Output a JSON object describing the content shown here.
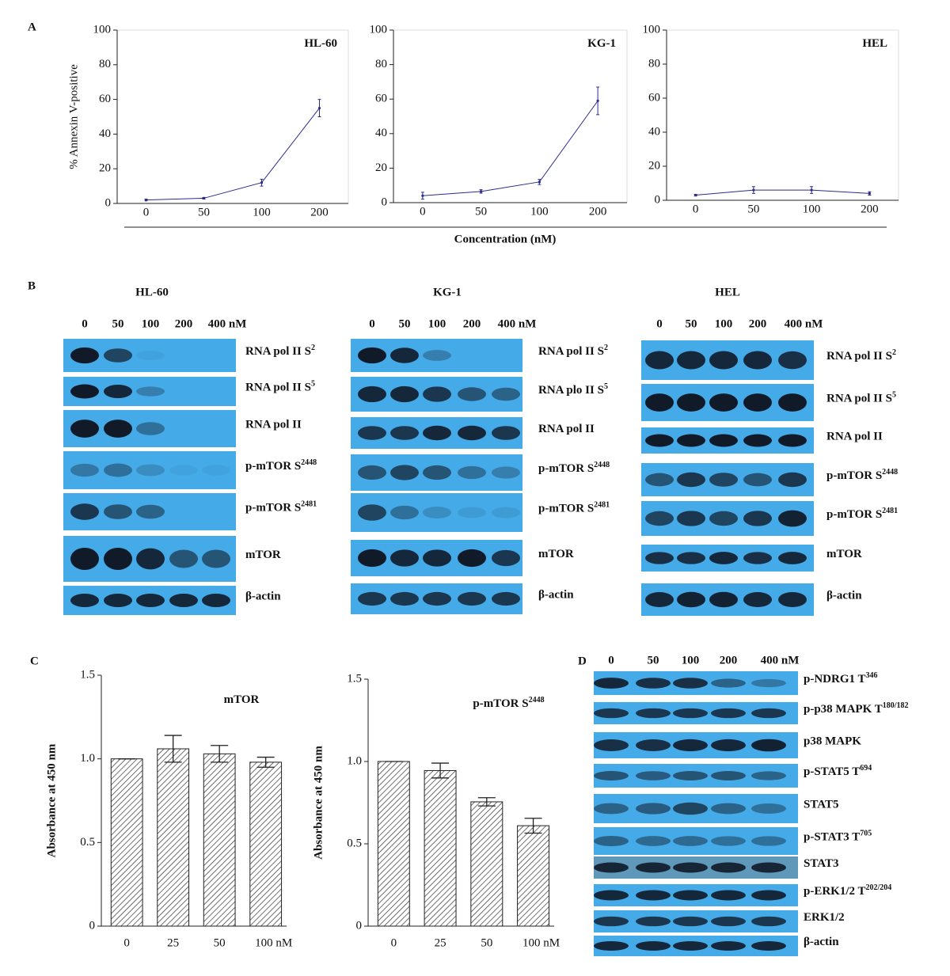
{
  "panel_labels": [
    "A",
    "B",
    "C",
    "D"
  ],
  "chart_data": [
    {
      "type": "line",
      "title": "HL-60",
      "ylabel": "% Annexin V-positive",
      "categories": [
        "0",
        "50",
        "100",
        "200"
      ],
      "values": [
        2,
        3,
        12,
        55
      ],
      "errors": [
        0.5,
        0.5,
        2,
        5
      ],
      "color": "#2b2b8c",
      "ylim": [
        0,
        100
      ],
      "yticks": [
        0,
        20,
        40,
        60,
        80,
        100
      ]
    },
    {
      "type": "line",
      "title": "KG-1",
      "xlabel": "Concentration (nM)",
      "categories": [
        "0",
        "50",
        "100",
        "200"
      ],
      "values": [
        4,
        6.5,
        12,
        59
      ],
      "errors": [
        2,
        1,
        1.5,
        8
      ],
      "color": "#2b2b8c",
      "ylim": [
        0,
        100
      ],
      "yticks": [
        0,
        20,
        40,
        60,
        80,
        100
      ]
    },
    {
      "type": "line",
      "title": "HEL",
      "categories": [
        "0",
        "50",
        "100",
        "200"
      ],
      "values": [
        3,
        6,
        6,
        4
      ],
      "errors": [
        0.5,
        2,
        2,
        1
      ],
      "color": "#2b2b8c",
      "ylim": [
        0,
        100
      ],
      "yticks": [
        0,
        20,
        40,
        60,
        80,
        100
      ]
    },
    {
      "type": "bar",
      "title": "mTOR",
      "ylabel": "Absorbance at 450 nm",
      "categories": [
        "0",
        "25",
        "50",
        "100 nM"
      ],
      "values": [
        1.0,
        1.06,
        1.03,
        0.98
      ],
      "errors": [
        0,
        0.08,
        0.05,
        0.03
      ],
      "ylim": [
        0,
        1.5
      ],
      "yticks": [
        0,
        0.5,
        {
          "value": 1,
          "label": "1.0"
        },
        1.5
      ]
    },
    {
      "type": "bar",
      "title": "p-mTOR S",
      "title_sup": "2448",
      "ylabel": "Absorbance at 450 nm",
      "categories": [
        "0",
        "25",
        "50",
        "100 nM"
      ],
      "values": [
        1.0,
        0.945,
        0.755,
        0.61
      ],
      "errors": [
        0,
        0.045,
        0.025,
        0.045
      ],
      "ylim": [
        0,
        1.5
      ],
      "yticks": [
        0,
        0.5,
        {
          "value": 1,
          "label": "1.0"
        },
        1.5
      ]
    }
  ],
  "blots": [
    {
      "title": "HL-60",
      "lanes": [
        "0",
        "50",
        "100",
        "200",
        "400 nM"
      ],
      "rows": [
        {
          "label": "RNA pol II S",
          "sup": "2"
        },
        {
          "label": "RNA pol II S",
          "sup": "5"
        },
        {
          "label": "RNA pol II"
        },
        {
          "label": "p-mTOR S",
          "sup": "2448"
        },
        {
          "label": "p-mTOR S",
          "sup": "2481"
        },
        {
          "label": "mTOR"
        },
        {
          "label": "β-actin"
        }
      ]
    },
    {
      "title": "KG-1",
      "lanes": [
        "0",
        "50",
        "100",
        "200",
        "400 nM"
      ],
      "rows": [
        {
          "label": "RNA pol II S",
          "sup": "2"
        },
        {
          "label": "RNA plo II S",
          "sup": "5"
        },
        {
          "label": "RNA pol II"
        },
        {
          "label": "p-mTOR S",
          "sup": "2448"
        },
        {
          "label": "p-mTOR S",
          "sup": "2481"
        },
        {
          "label": "mTOR"
        },
        {
          "label": "β-actin"
        }
      ]
    },
    {
      "title": "HEL",
      "lanes": [
        "0",
        "50",
        "100",
        "200",
        "400 nM"
      ],
      "rows": [
        {
          "label": "RNA pol II S",
          "sup": "2"
        },
        {
          "label": "RNA pol II S",
          "sup": "5"
        },
        {
          "label": "RNA pol II"
        },
        {
          "label": "p-mTOR S",
          "sup": "2448"
        },
        {
          "label": "p-mTOR S",
          "sup": "2481"
        },
        {
          "label": "mTOR"
        },
        {
          "label": "β-actin"
        }
      ]
    },
    {
      "lanes": [
        "0",
        "50",
        "100",
        "200",
        "400 nM"
      ],
      "rows": [
        {
          "label": "p-NDRG1 T",
          "sup": "346"
        },
        {
          "label": "p-p38 MAPK T",
          "sup": "180/182"
        },
        {
          "label": "p38 MAPK"
        },
        {
          "label": "p-STAT5 T",
          "sup": "694"
        },
        {
          "label": "STAT5"
        },
        {
          "label": "p-STAT3 T",
          "sup": "705"
        },
        {
          "label": "STAT3"
        },
        {
          "label": "p-ERK1/2 T",
          "sup": "202/204"
        },
        {
          "label": "ERK1/2"
        },
        {
          "label": "β-actin"
        }
      ]
    }
  ]
}
